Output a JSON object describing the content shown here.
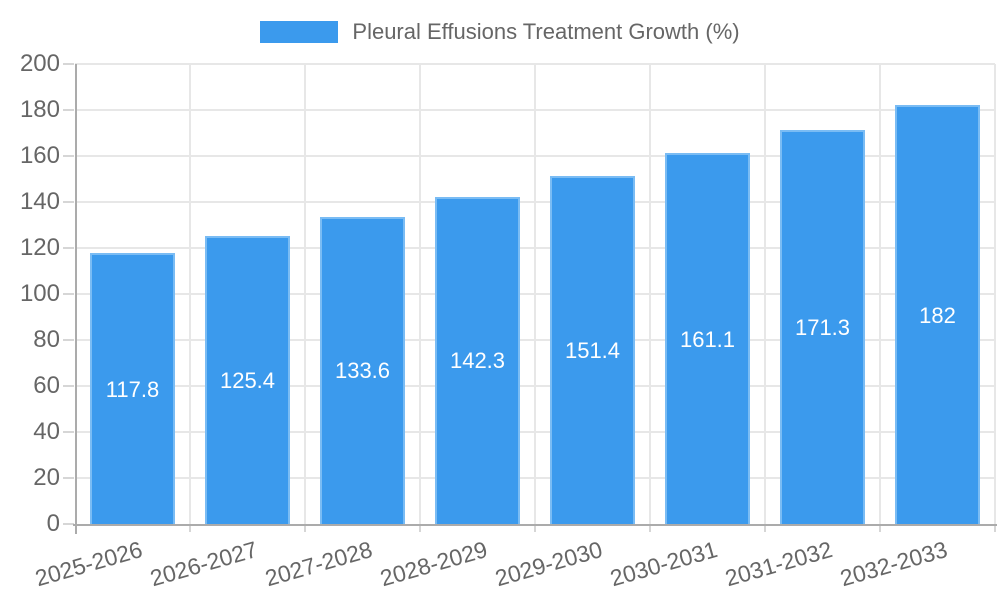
{
  "legend": {
    "label": "Pleural Effusions Treatment Growth (%)",
    "swatch_color": "#3b9aed"
  },
  "chart_data": {
    "type": "bar",
    "title": "Pleural Effusions Treatment Growth (%)",
    "categories": [
      "2025-2026",
      "2026-2027",
      "2027-2028",
      "2028-2029",
      "2029-2030",
      "2030-2031",
      "2031-2032",
      "2032-2033"
    ],
    "values": [
      117.8,
      125.4,
      133.6,
      142.3,
      151.4,
      161.1,
      171.3,
      182
    ],
    "value_labels": [
      "117.8",
      "125.4",
      "133.6",
      "142.3",
      "151.4",
      "161.1",
      "171.3",
      "182"
    ],
    "xlabel": "",
    "ylabel": "",
    "ylim": [
      0,
      200
    ],
    "ytick_step": 20,
    "yticks": [
      0,
      20,
      40,
      60,
      80,
      100,
      120,
      140,
      160,
      180,
      200
    ],
    "grid": true,
    "legend_position": "top",
    "bar_color": "#3b9aed",
    "bar_border_color": "#7abcf4",
    "bar_label_color": "#ffffff",
    "axis_color": "#ababab",
    "grid_color": "#e7e7e7",
    "tick_color": "#d6d6d6",
    "text_color": "#666666"
  }
}
